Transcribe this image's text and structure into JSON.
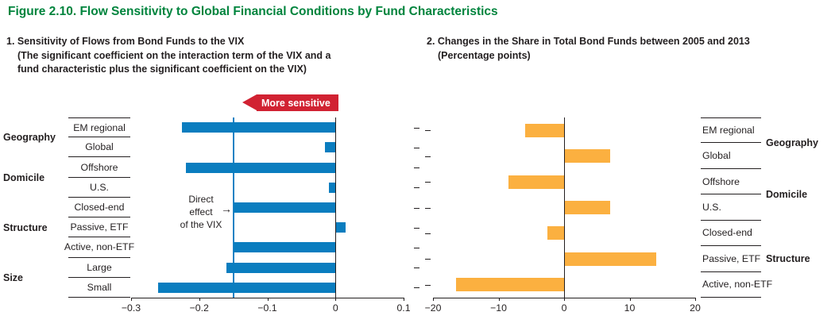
{
  "figure": {
    "title": "Figure 2.10. Flow Sensitivity to Global Financial Conditions by Fund Characteristics",
    "title_color": "#00843d"
  },
  "panels": {
    "left": {
      "heading": "1. Sensitivity of Flows from Bond Funds to the VIX",
      "subheading1": "(The significant coefficient on the interaction term of the VIX and a",
      "subheading2": "fund characteristic plus the significant coefficient on the VIX)",
      "banner_label": "More sensitive",
      "banner_color": "#d12232",
      "direct_effect_lines": [
        "Direct",
        "effect",
        "of the VIX"
      ],
      "annotation_arrow_glyph": "→"
    },
    "right": {
      "heading": "2. Changes in the Share in Total Bond Funds between 2005 and 2013",
      "subheading1": "(Percentage points)"
    }
  },
  "chart_data": [
    {
      "type": "bar",
      "orientation": "horizontal",
      "title": "Sensitivity of Flows from Bond Funds to the VIX",
      "categories": [
        "EM regional",
        "Global",
        "Offshore",
        "U.S.",
        "Closed-end",
        "Passive, ETF",
        "Active, non-ETF",
        "Large",
        "Small"
      ],
      "values": [
        -0.225,
        -0.015,
        -0.22,
        -0.01,
        -0.15,
        0.015,
        -0.15,
        -0.16,
        -0.26
      ],
      "groups": [
        {
          "label": "Geography",
          "span": 2
        },
        {
          "label": "Domicile",
          "span": 2
        },
        {
          "label": "Structure",
          "span": 3
        },
        {
          "label": "Size",
          "span": 2
        }
      ],
      "xlim": [
        -0.3,
        0.1
      ],
      "xticks": [
        -0.3,
        -0.2,
        -0.1,
        0,
        0.1
      ],
      "xtick_labels": [
        "−0.3",
        "−0.2",
        "−0.1",
        "0",
        "0.1"
      ],
      "bar_color": "#0a7dbf",
      "reference_line": {
        "value": -0.15,
        "label": "Direct effect of the VIX",
        "color": "#1d82c4"
      },
      "grid": false,
      "legend": false
    },
    {
      "type": "bar",
      "orientation": "horizontal",
      "title": "Changes in the Share in Total Bond Funds between 2005 and 2013",
      "categories": [
        "EM regional",
        "Global",
        "Offshore",
        "U.S.",
        "Closed-end",
        "Passive, ETF",
        "Active, non-ETF"
      ],
      "values": [
        -6,
        7,
        -8.5,
        7,
        -2.5,
        14,
        -16.5
      ],
      "groups": [
        {
          "label": "Geography",
          "span": 2
        },
        {
          "label": "Domicile",
          "span": 2
        },
        {
          "label": "Structure",
          "span": 3
        }
      ],
      "xlim": [
        -20,
        20
      ],
      "xticks": [
        -20,
        -10,
        0,
        10,
        20
      ],
      "xtick_labels": [
        "−20",
        "−10",
        "0",
        "10",
        "20"
      ],
      "bar_color": "#fbb040",
      "grid": false,
      "legend": false
    }
  ]
}
